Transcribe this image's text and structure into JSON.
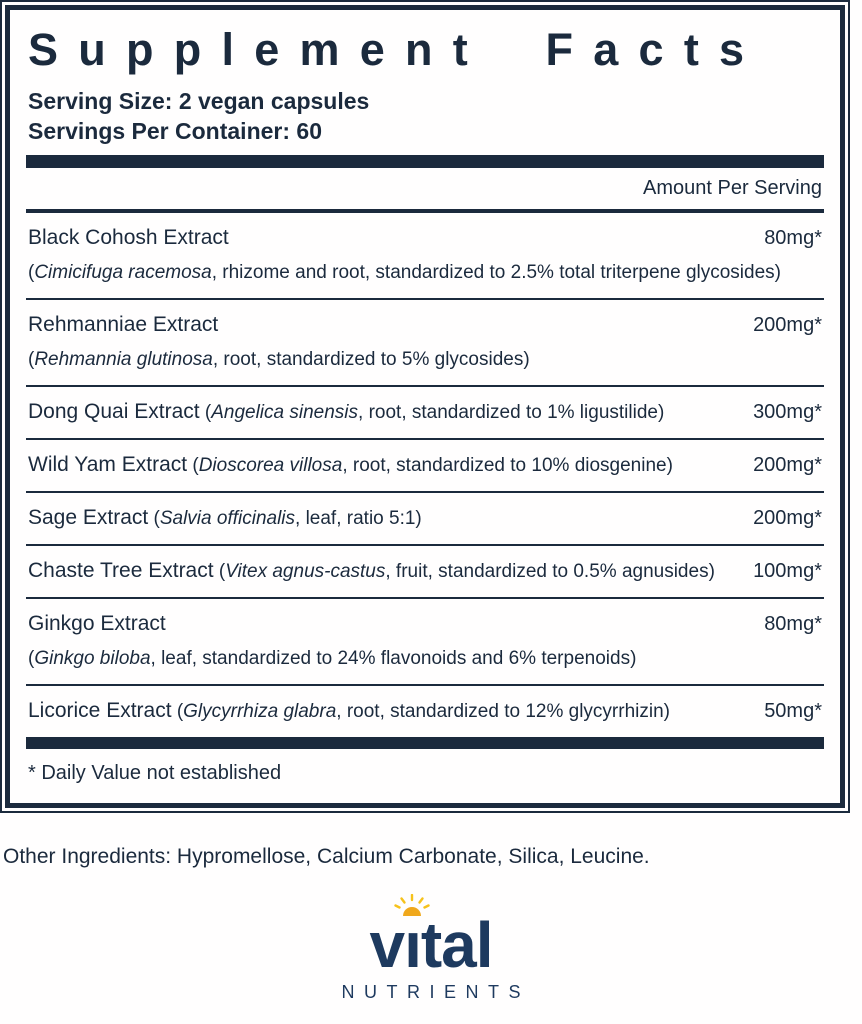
{
  "label": {
    "title": "Supplement Facts",
    "serving_size": "Serving Size: 2 vegan capsules",
    "servings_per_container": "Servings Per Container: 60",
    "amount_header": "Amount Per Serving",
    "rows": [
      {
        "name": "Black Cohosh Extract",
        "latin": "Cimicifuga racemosa",
        "detail": ", rhizome and root, standardized to 2.5% total triterpene glycosides",
        "amount": "80mg*",
        "layout": "stacked"
      },
      {
        "name": "Rehmanniae Extract",
        "latin": "Rehmannia glutinosa",
        "detail": ", root, standardized to 5% glycosides",
        "amount": "200mg*",
        "layout": "stacked"
      },
      {
        "name": "Dong Quai Extract",
        "latin": "Angelica sinensis",
        "detail": ", root, standardized to 1% ligustilide",
        "amount": "300mg*",
        "layout": "inline"
      },
      {
        "name": "Wild Yam Extract",
        "latin": "Dioscorea villosa",
        "detail": ", root, standardized to 10% diosgenine",
        "amount": "200mg*",
        "layout": "inline"
      },
      {
        "name": "Sage Extract",
        "latin": "Salvia officinalis",
        "detail": ", leaf, ratio 5:1",
        "amount": "200mg*",
        "layout": "inline"
      },
      {
        "name": "Chaste Tree Extract",
        "latin": "Vitex agnus-castus",
        "detail": ", fruit, standardized to 0.5% agnusides",
        "amount": "100mg*",
        "layout": "inline"
      },
      {
        "name": "Ginkgo Extract",
        "latin": "Ginkgo biloba",
        "detail": ", leaf, standardized to 24% flavonoids and 6% terpenoids",
        "amount": "80mg*",
        "layout": "stacked"
      },
      {
        "name": "Licorice Extract",
        "latin": "Glycyrrhiza glabra",
        "detail": ", root, standardized to 12% glycyrrhizin",
        "amount": "50mg*",
        "layout": "inline"
      }
    ],
    "footnote": "* Daily Value not established"
  },
  "other_ingredients": "Other Ingredients: Hypromellose, Calcium Carbonate, Silica, Leucine.",
  "brand": {
    "name": "vital",
    "display": {
      "pre": "v",
      "i": "ı",
      "post": "tal"
    },
    "tagline": "NUTRIENTS",
    "sun_icon": "sun-icon"
  },
  "colors": {
    "navy": "#1b2a3d",
    "logo_navy": "#1e3a5f",
    "sun_gold": "#f0a81c",
    "sun_ray": "#f6c21b",
    "background": "#fffefe"
  }
}
